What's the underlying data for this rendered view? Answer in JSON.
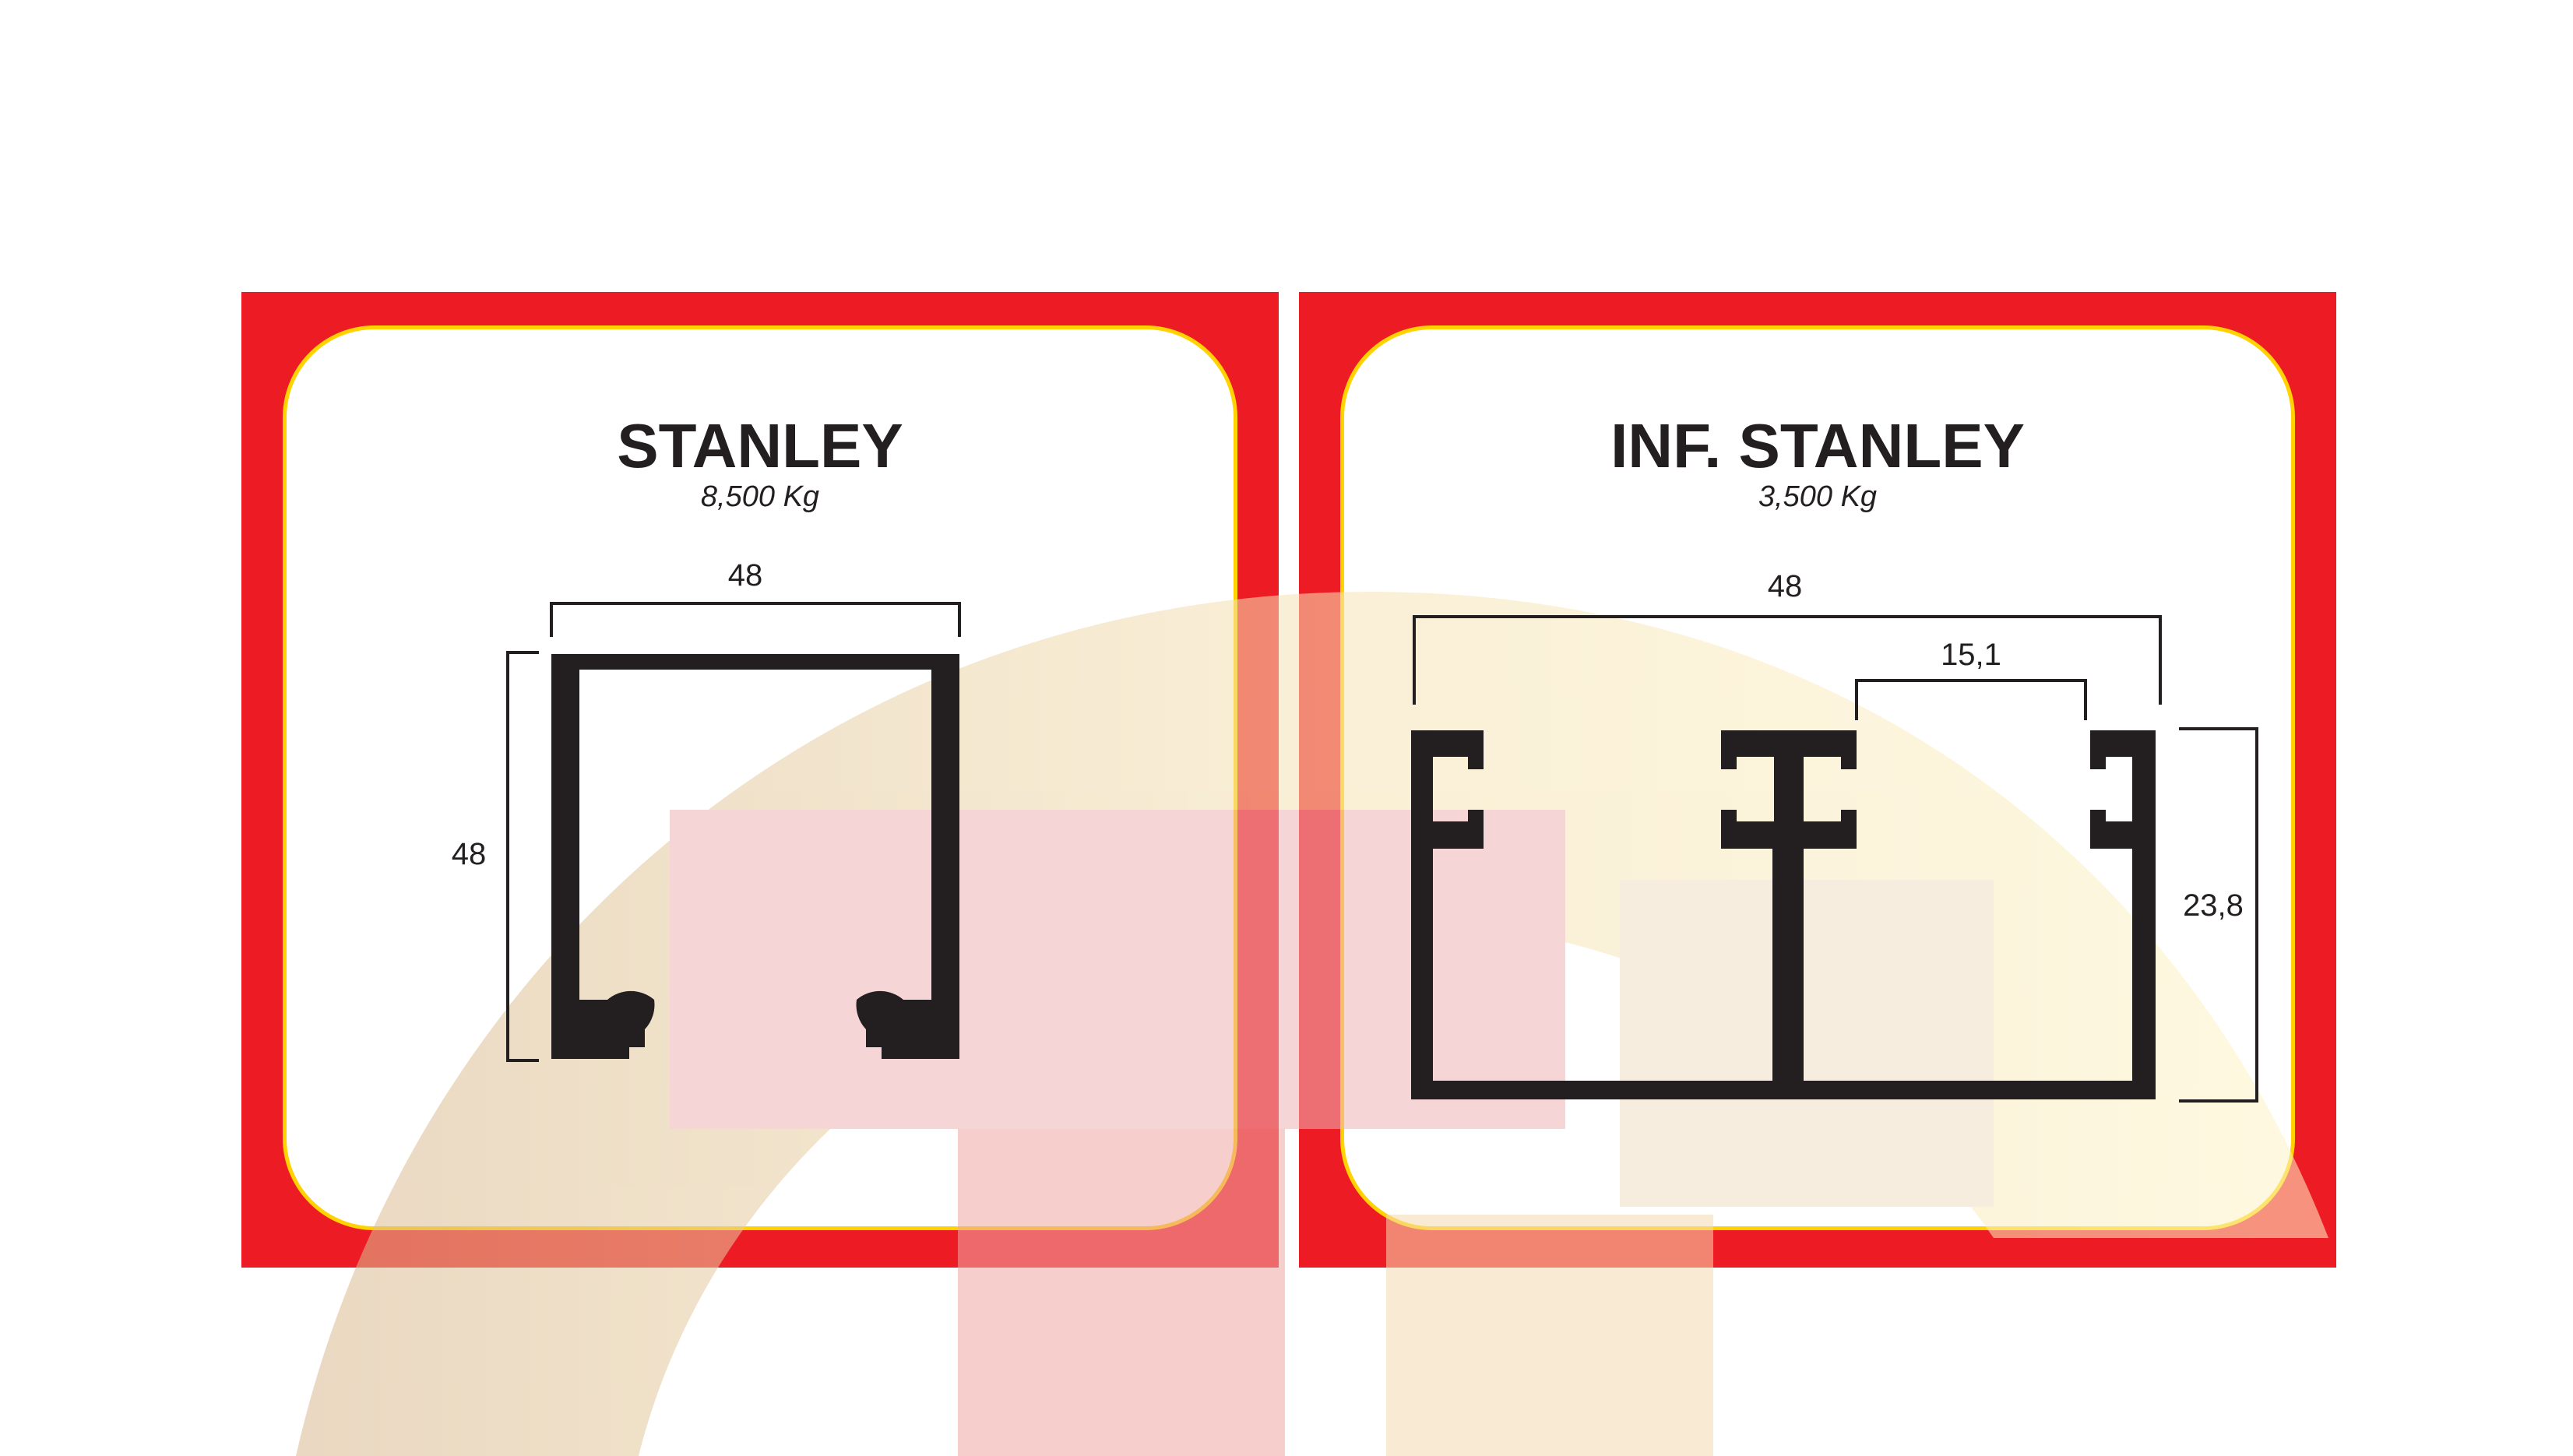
{
  "profiles": [
    {
      "name": "STANLEY",
      "weight": "8,500 Kg",
      "dimensions": {
        "width": "48",
        "height": "48"
      }
    },
    {
      "name": "INF. STANLEY",
      "weight": "3,500 Kg",
      "dimensions": {
        "width": "48",
        "slot": "15,1",
        "height": "23,8"
      }
    }
  ],
  "colors": {
    "frame": "#ed1c24",
    "inner_border": "#ffd200",
    "profile": "#231f20",
    "watermark_tan": "#e8cfae",
    "watermark_pink": "#f4a9aa"
  }
}
